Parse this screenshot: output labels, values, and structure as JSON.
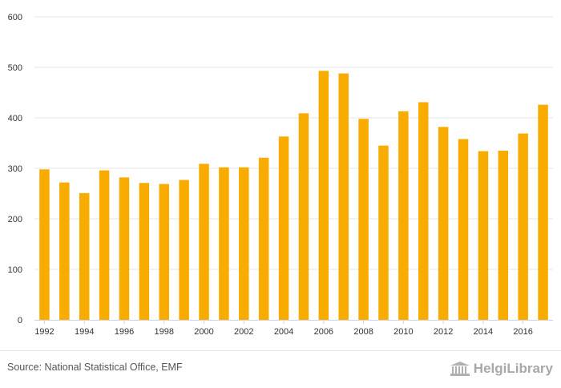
{
  "chart_data": {
    "type": "bar",
    "categories": [
      "1992",
      "1993",
      "1994",
      "1995",
      "1996",
      "1997",
      "1998",
      "1999",
      "2000",
      "2001",
      "2002",
      "2003",
      "2004",
      "2005",
      "2006",
      "2007",
      "2008",
      "2009",
      "2010",
      "2011",
      "2012",
      "2013",
      "2014",
      "2015",
      "2016",
      "2017"
    ],
    "x_tick_labels": [
      "1992",
      "",
      "1994",
      "",
      "1996",
      "",
      "1998",
      "",
      "2000",
      "",
      "2002",
      "",
      "2004",
      "",
      "2006",
      "",
      "2008",
      "",
      "2010",
      "",
      "2012",
      "",
      "2014",
      "",
      "2016",
      ""
    ],
    "values": [
      298,
      272,
      251,
      296,
      282,
      271,
      269,
      277,
      309,
      302,
      302,
      321,
      363,
      409,
      493,
      488,
      398,
      345,
      413,
      431,
      382,
      358,
      334,
      335,
      369,
      426
    ],
    "y_ticks": [
      0,
      100,
      200,
      300,
      400,
      500,
      600
    ],
    "ylim": [
      0,
      600
    ],
    "title": "",
    "xlabel": "",
    "ylabel": "",
    "grid": true,
    "bar_color": "#f9ac00",
    "grid_color": "#e6e6e6"
  },
  "footer": {
    "source": "Source: National Statistical Office, EMF",
    "logo_text": "HelgiLibrary"
  }
}
